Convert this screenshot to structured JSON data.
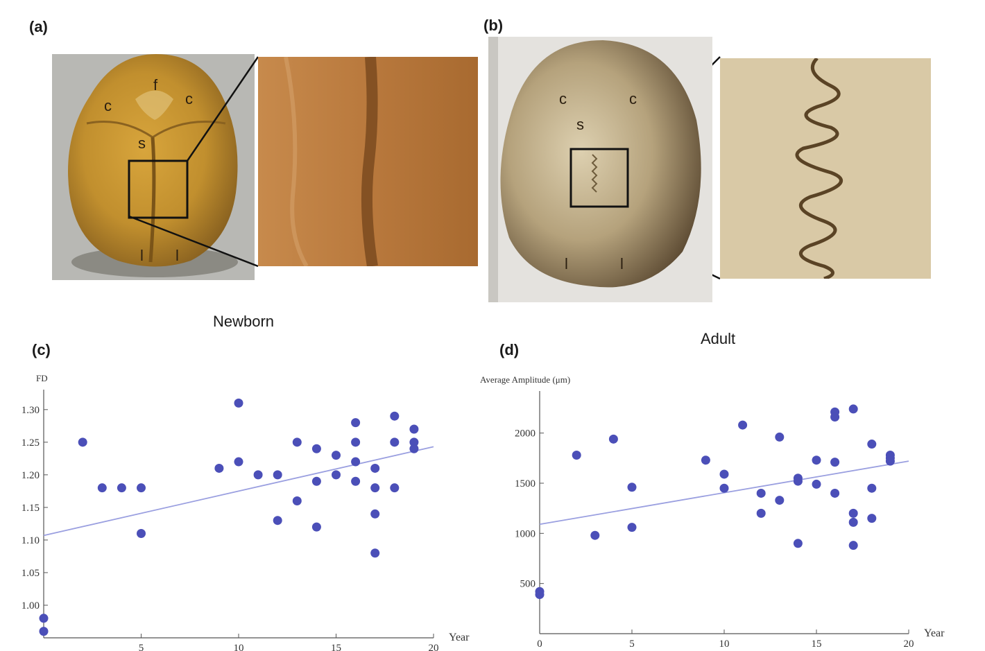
{
  "panels": {
    "a": {
      "letter": "(a)",
      "caption": "Newborn",
      "skull_labels": [
        "c",
        "f",
        "c",
        "s",
        "l",
        "l"
      ]
    },
    "b": {
      "letter": "(b)",
      "caption": "Adult",
      "skull_labels": [
        "c",
        "c",
        "s",
        "l",
        "l"
      ]
    },
    "c": {
      "letter": "(c)"
    },
    "d": {
      "letter": "(d)"
    }
  },
  "colors": {
    "points": "#4b4fb8",
    "fit_line": "#9a9fe0",
    "axis": "#555555"
  },
  "chart_data": [
    {
      "id": "c",
      "type": "scatter",
      "ylabel": "FD",
      "xlabel": "Year",
      "xlim": [
        0,
        20
      ],
      "ylim": [
        0.95,
        1.32
      ],
      "xticks": [
        5,
        10,
        15,
        20
      ],
      "yticks": [
        1.0,
        1.05,
        1.1,
        1.15,
        1.2,
        1.25,
        1.3
      ],
      "ytick_labels": [
        "1.00",
        "1.05",
        "1.10",
        "1.15",
        "1.20",
        "1.25",
        "1.30"
      ],
      "points": [
        [
          0,
          0.98
        ],
        [
          0,
          0.96
        ],
        [
          2,
          1.25
        ],
        [
          3,
          1.18
        ],
        [
          4,
          1.18
        ],
        [
          5,
          1.18
        ],
        [
          5,
          1.11
        ],
        [
          9,
          1.21
        ],
        [
          10,
          1.31
        ],
        [
          10,
          1.22
        ],
        [
          11,
          1.2
        ],
        [
          12,
          1.2
        ],
        [
          12,
          1.13
        ],
        [
          13,
          1.25
        ],
        [
          13,
          1.16
        ],
        [
          14,
          1.24
        ],
        [
          14,
          1.19
        ],
        [
          14,
          1.12
        ],
        [
          15,
          1.23
        ],
        [
          15,
          1.2
        ],
        [
          16,
          1.28
        ],
        [
          16,
          1.25
        ],
        [
          16,
          1.22
        ],
        [
          16,
          1.19
        ],
        [
          17,
          1.21
        ],
        [
          17,
          1.18
        ],
        [
          17,
          1.14
        ],
        [
          17,
          1.08
        ],
        [
          18,
          1.29
        ],
        [
          18,
          1.25
        ],
        [
          18,
          1.18
        ],
        [
          19,
          1.27
        ],
        [
          19,
          1.25
        ],
        [
          19,
          1.24
        ]
      ],
      "fit": {
        "x": [
          0,
          20
        ],
        "y": [
          1.107,
          1.243
        ]
      }
    },
    {
      "id": "d",
      "type": "scatter",
      "ylabel": "Average Amplitude (μm)",
      "xlabel": "Year",
      "xlim": [
        0,
        20
      ],
      "ylim": [
        0,
        2350
      ],
      "xticks": [
        0,
        5,
        10,
        15,
        20
      ],
      "yticks": [
        500,
        1000,
        1500,
        2000
      ],
      "ytick_labels": [
        "500",
        "1000",
        "1500",
        "2000"
      ],
      "points": [
        [
          0,
          420
        ],
        [
          0,
          390
        ],
        [
          2,
          1780
        ],
        [
          3,
          980
        ],
        [
          4,
          1940
        ],
        [
          5,
          1460
        ],
        [
          5,
          1060
        ],
        [
          9,
          1730
        ],
        [
          10,
          1590
        ],
        [
          10,
          1450
        ],
        [
          11,
          2080
        ],
        [
          12,
          1400
        ],
        [
          12,
          1200
        ],
        [
          13,
          1960
        ],
        [
          13,
          1330
        ],
        [
          14,
          1550
        ],
        [
          14,
          1520
        ],
        [
          14,
          900
        ],
        [
          15,
          1730
        ],
        [
          15,
          1490
        ],
        [
          16,
          2210
        ],
        [
          16,
          2160
        ],
        [
          16,
          1710
        ],
        [
          16,
          1400
        ],
        [
          17,
          2240
        ],
        [
          17,
          1200
        ],
        [
          17,
          1110
        ],
        [
          17,
          880
        ],
        [
          18,
          1890
        ],
        [
          18,
          1450
        ],
        [
          18,
          1150
        ],
        [
          19,
          1780
        ],
        [
          19,
          1750
        ],
        [
          19,
          1720
        ]
      ],
      "fit": {
        "x": [
          0,
          20
        ],
        "y": [
          1090,
          1720
        ]
      }
    }
  ]
}
